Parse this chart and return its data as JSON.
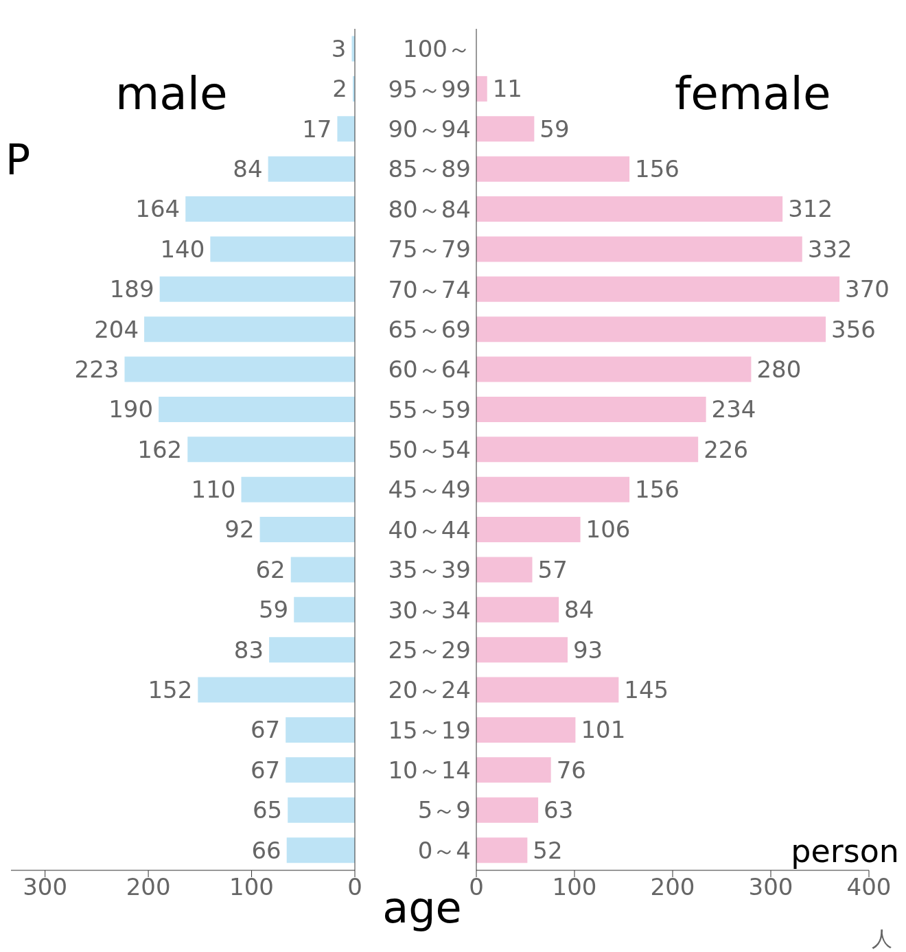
{
  "chart_data": [
    {
      "type": "bar",
      "orientation": "horizontal",
      "title": "male",
      "annotations": [
        "P"
      ],
      "categories": [
        null,
        null,
        null,
        null,
        null,
        null,
        null,
        null,
        null,
        null,
        null,
        null,
        null,
        null,
        null,
        null,
        null,
        null,
        null,
        null,
        null
      ],
      "values": [
        3,
        2,
        17,
        84,
        164,
        140,
        189,
        204,
        223,
        190,
        162,
        110,
        92,
        62,
        59,
        83,
        152,
        67,
        67,
        65,
        66
      ],
      "color": "#bde3f5",
      "xlim": [
        333,
        0
      ],
      "xticks": [
        300,
        200,
        100,
        0
      ],
      "data_labels": true,
      "tick_labels": "x"
    },
    {
      "type": "bar",
      "orientation": "horizontal",
      "title": "female",
      "ylabel": "age",
      "xlabel": "person",
      "annotations": [
        "人"
      ],
      "categories": [
        "100～",
        "95～99",
        "90～94",
        "85～89",
        "80～84",
        "75～79",
        "70～74",
        "65～69",
        "60～64",
        "55～59",
        "50～54",
        "45～49",
        "40～44",
        "35～39",
        "30～34",
        "25～29",
        "20～24",
        "15～19",
        "10～14",
        "5～9",
        "0～4"
      ],
      "values": [
        null,
        11,
        59,
        156,
        312,
        332,
        370,
        356,
        280,
        234,
        226,
        156,
        106,
        57,
        84,
        93,
        145,
        101,
        76,
        63,
        52
      ],
      "color": "#f5c0d8",
      "xlim": [
        0,
        400
      ],
      "xticks": [
        0,
        100,
        200,
        300,
        400
      ],
      "data_labels": true
    }
  ]
}
